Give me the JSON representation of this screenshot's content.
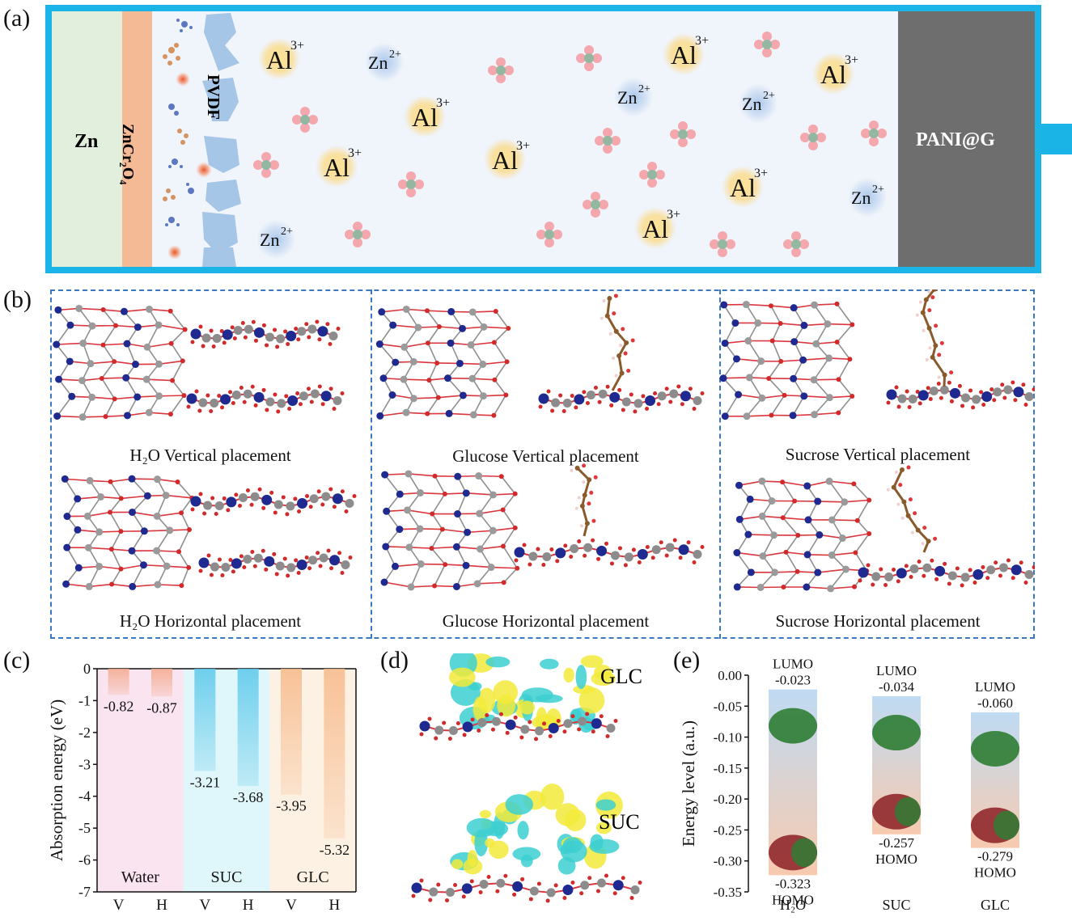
{
  "panel_labels": {
    "a": "(a)",
    "b": "(b)",
    "c": "(c)",
    "d": "(d)",
    "e": "(e)"
  },
  "panel_a": {
    "zn": "Zn",
    "coating": "ZnCr₂O₄",
    "separator": "PVDF",
    "cathode": "PANI@G",
    "al_ion": {
      "base": "Al",
      "charge": "3+"
    },
    "zn_ion": {
      "base": "Zn",
      "charge": "2+"
    },
    "colors": {
      "zn": "#e2efdc",
      "coating": "#f4b995",
      "electrolyte": "#f0f4fb",
      "cathode": "#6e6e6e",
      "frame": "#1ab5e6",
      "separator": "#a5c6e6"
    }
  },
  "panel_b": {
    "captions": [
      "H₂O Vertical placement",
      "Glucose Vertical placement",
      "Sucrose Vertical placement",
      "H₂O Horizontal placement",
      "Glucose Horizontal placement",
      "Sucrose Horizontal placement"
    ]
  },
  "panel_d": {
    "labels": [
      "GLC",
      "SUC"
    ]
  },
  "chart_data": [
    {
      "type": "bar",
      "ylabel": "Absorption energy (eV)",
      "ylim": [
        -7,
        0
      ],
      "yticks": [
        "0",
        "-1",
        "-2",
        "-3",
        "-4",
        "-5",
        "-6",
        "-7"
      ],
      "categories": [
        "V",
        "H",
        "V",
        "H",
        "V",
        "H"
      ],
      "values": [
        -0.82,
        -0.87,
        -3.21,
        -3.68,
        -3.95,
        -5.32
      ],
      "value_labels": [
        "-0.82",
        "-0.87",
        "-3.21",
        "-3.68",
        "-3.95",
        "-5.32"
      ],
      "groups": [
        {
          "name": "Water",
          "color": "#f9e4f0"
        },
        {
          "name": "SUC",
          "color": "#dff6fb"
        },
        {
          "name": "GLC",
          "color": "#fdf1e3"
        }
      ],
      "bar_colors": [
        "#f4a98c",
        "#f4a98c",
        "#5bc8ea",
        "#5bc8ea",
        "#f7b98a",
        "#f7b98a"
      ]
    },
    {
      "type": "scatter",
      "ylabel": "Energy level (a.u.)",
      "ylim": [
        -0.35,
        0.0
      ],
      "yticks": [
        "0.00",
        "-0.05",
        "-0.10",
        "-0.15",
        "-0.20",
        "-0.25",
        "-0.30",
        "-0.35"
      ],
      "categories": [
        "H₂O",
        "SUC",
        "GLC"
      ],
      "lumo_label": "LUMO",
      "homo_label": "HOMO",
      "lumo": [
        -0.023,
        -0.034,
        -0.06
      ],
      "homo": [
        -0.323,
        -0.257,
        -0.279
      ],
      "lumo_labels": [
        "-0.023",
        "-0.034",
        "-0.060"
      ],
      "homo_labels": [
        "-0.323",
        "-0.257",
        "-0.279"
      ]
    }
  ]
}
